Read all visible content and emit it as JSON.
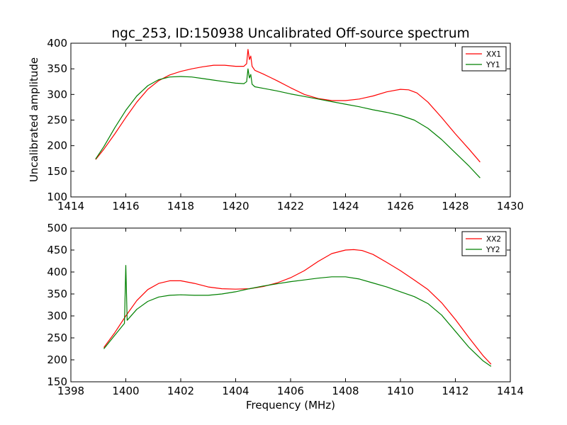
{
  "chart_data": {
    "title": "ngc_253, ID:150938 Uncalibrated Off-source spectrum",
    "ylabel": "Uncalibrated amplitude",
    "xlabel": "Frequency (MHz)",
    "panels": [
      {
        "type": "line",
        "xlim": [
          1414,
          1430
        ],
        "ylim": [
          100,
          400
        ],
        "xticks": [
          "1414",
          "1416",
          "1418",
          "1420",
          "1422",
          "1424",
          "1426",
          "1428",
          "1430"
        ],
        "yticks": [
          "100",
          "150",
          "200",
          "250",
          "300",
          "350",
          "400"
        ],
        "legend_position": "top-right",
        "series": [
          {
            "name": "XX1",
            "color": "#ff0000",
            "x": [
              1414.9,
              1415.2,
              1415.6,
              1416.0,
              1416.4,
              1416.8,
              1417.2,
              1417.6,
              1418.0,
              1418.4,
              1418.8,
              1419.2,
              1419.6,
              1420.0,
              1420.3,
              1420.4,
              1420.45,
              1420.5,
              1420.55,
              1420.6,
              1420.7,
              1421.0,
              1421.5,
              1422.0,
              1422.5,
              1423.0,
              1423.5,
              1424.0,
              1424.5,
              1425.0,
              1425.5,
              1426.0,
              1426.3,
              1426.6,
              1427.0,
              1427.5,
              1428.0,
              1428.5,
              1428.9
            ],
            "values": [
              173,
              193,
              223,
              255,
              285,
              310,
              327,
              338,
              345,
              350,
              354,
              357,
              357,
              355,
              355,
              360,
              388,
              368,
              375,
              355,
              347,
              340,
              327,
              313,
              300,
              292,
              288,
              288,
              291,
              297,
              305,
              310,
              309,
              303,
              285,
              255,
              223,
              193,
              168
            ]
          },
          {
            "name": "YY1",
            "color": "#008000",
            "x": [
              1414.9,
              1415.2,
              1415.6,
              1416.0,
              1416.4,
              1416.8,
              1417.2,
              1417.6,
              1418.0,
              1418.4,
              1418.8,
              1419.2,
              1419.6,
              1420.0,
              1420.3,
              1420.4,
              1420.45,
              1420.5,
              1420.55,
              1420.6,
              1420.7,
              1421.0,
              1421.5,
              1422.0,
              1422.5,
              1423.0,
              1423.5,
              1424.0,
              1424.5,
              1425.0,
              1425.5,
              1426.0,
              1426.5,
              1427.0,
              1427.5,
              1428.0,
              1428.5,
              1428.9
            ],
            "values": [
              174,
              198,
              235,
              269,
              297,
              317,
              329,
              334,
              335,
              334,
              331,
              328,
              325,
              322,
              321,
              325,
              350,
              332,
              339,
              320,
              315,
              312,
              307,
              301,
              296,
              291,
              286,
              281,
              276,
              270,
              265,
              259,
              250,
              234,
              212,
              186,
              160,
              137
            ]
          }
        ]
      },
      {
        "type": "line",
        "xlim": [
          1398,
          1414
        ],
        "ylim": [
          150,
          500
        ],
        "xticks": [
          "1398",
          "1400",
          "1402",
          "1404",
          "1406",
          "1408",
          "1410",
          "1412",
          "1414"
        ],
        "yticks": [
          "150",
          "200",
          "250",
          "300",
          "350",
          "400",
          "450",
          "500"
        ],
        "legend_position": "top-right",
        "series": [
          {
            "name": "XX2",
            "color": "#ff0000",
            "x": [
              1399.2,
              1399.6,
              1400.0,
              1400.4,
              1400.8,
              1401.2,
              1401.6,
              1402.0,
              1402.5,
              1403.0,
              1403.5,
              1404.0,
              1404.5,
              1405.0,
              1405.5,
              1406.0,
              1406.5,
              1407.0,
              1407.5,
              1408.0,
              1408.3,
              1408.6,
              1409.0,
              1409.5,
              1410.0,
              1410.5,
              1411.0,
              1411.5,
              1412.0,
              1412.5,
              1413.0,
              1413.3
            ],
            "values": [
              228,
              262,
              300,
              335,
              360,
              374,
              380,
              380,
              374,
              366,
              362,
              361,
              362,
              367,
              375,
              387,
              403,
              424,
              442,
              450,
              451,
              449,
              440,
              422,
              403,
              382,
              360,
              330,
              292,
              250,
              210,
              190
            ]
          },
          {
            "name": "YY2",
            "color": "#008000",
            "x": [
              1399.2,
              1399.6,
              1399.95,
              1400.0,
              1400.05,
              1400.4,
              1400.8,
              1401.2,
              1401.6,
              1402.0,
              1402.5,
              1403.0,
              1403.5,
              1404.0,
              1404.5,
              1405.0,
              1405.5,
              1406.0,
              1406.5,
              1407.0,
              1407.5,
              1408.0,
              1408.5,
              1409.0,
              1409.5,
              1410.0,
              1410.5,
              1411.0,
              1411.5,
              1412.0,
              1412.5,
              1413.0,
              1413.3
            ],
            "values": [
              225,
              256,
              283,
              415,
              290,
              315,
              333,
              343,
              347,
              348,
              347,
              347,
              350,
              355,
              362,
              368,
              373,
              378,
              382,
              386,
              389,
              389,
              384,
              375,
              366,
              355,
              344,
              328,
              302,
              265,
              228,
              198,
              185
            ]
          }
        ]
      }
    ]
  }
}
